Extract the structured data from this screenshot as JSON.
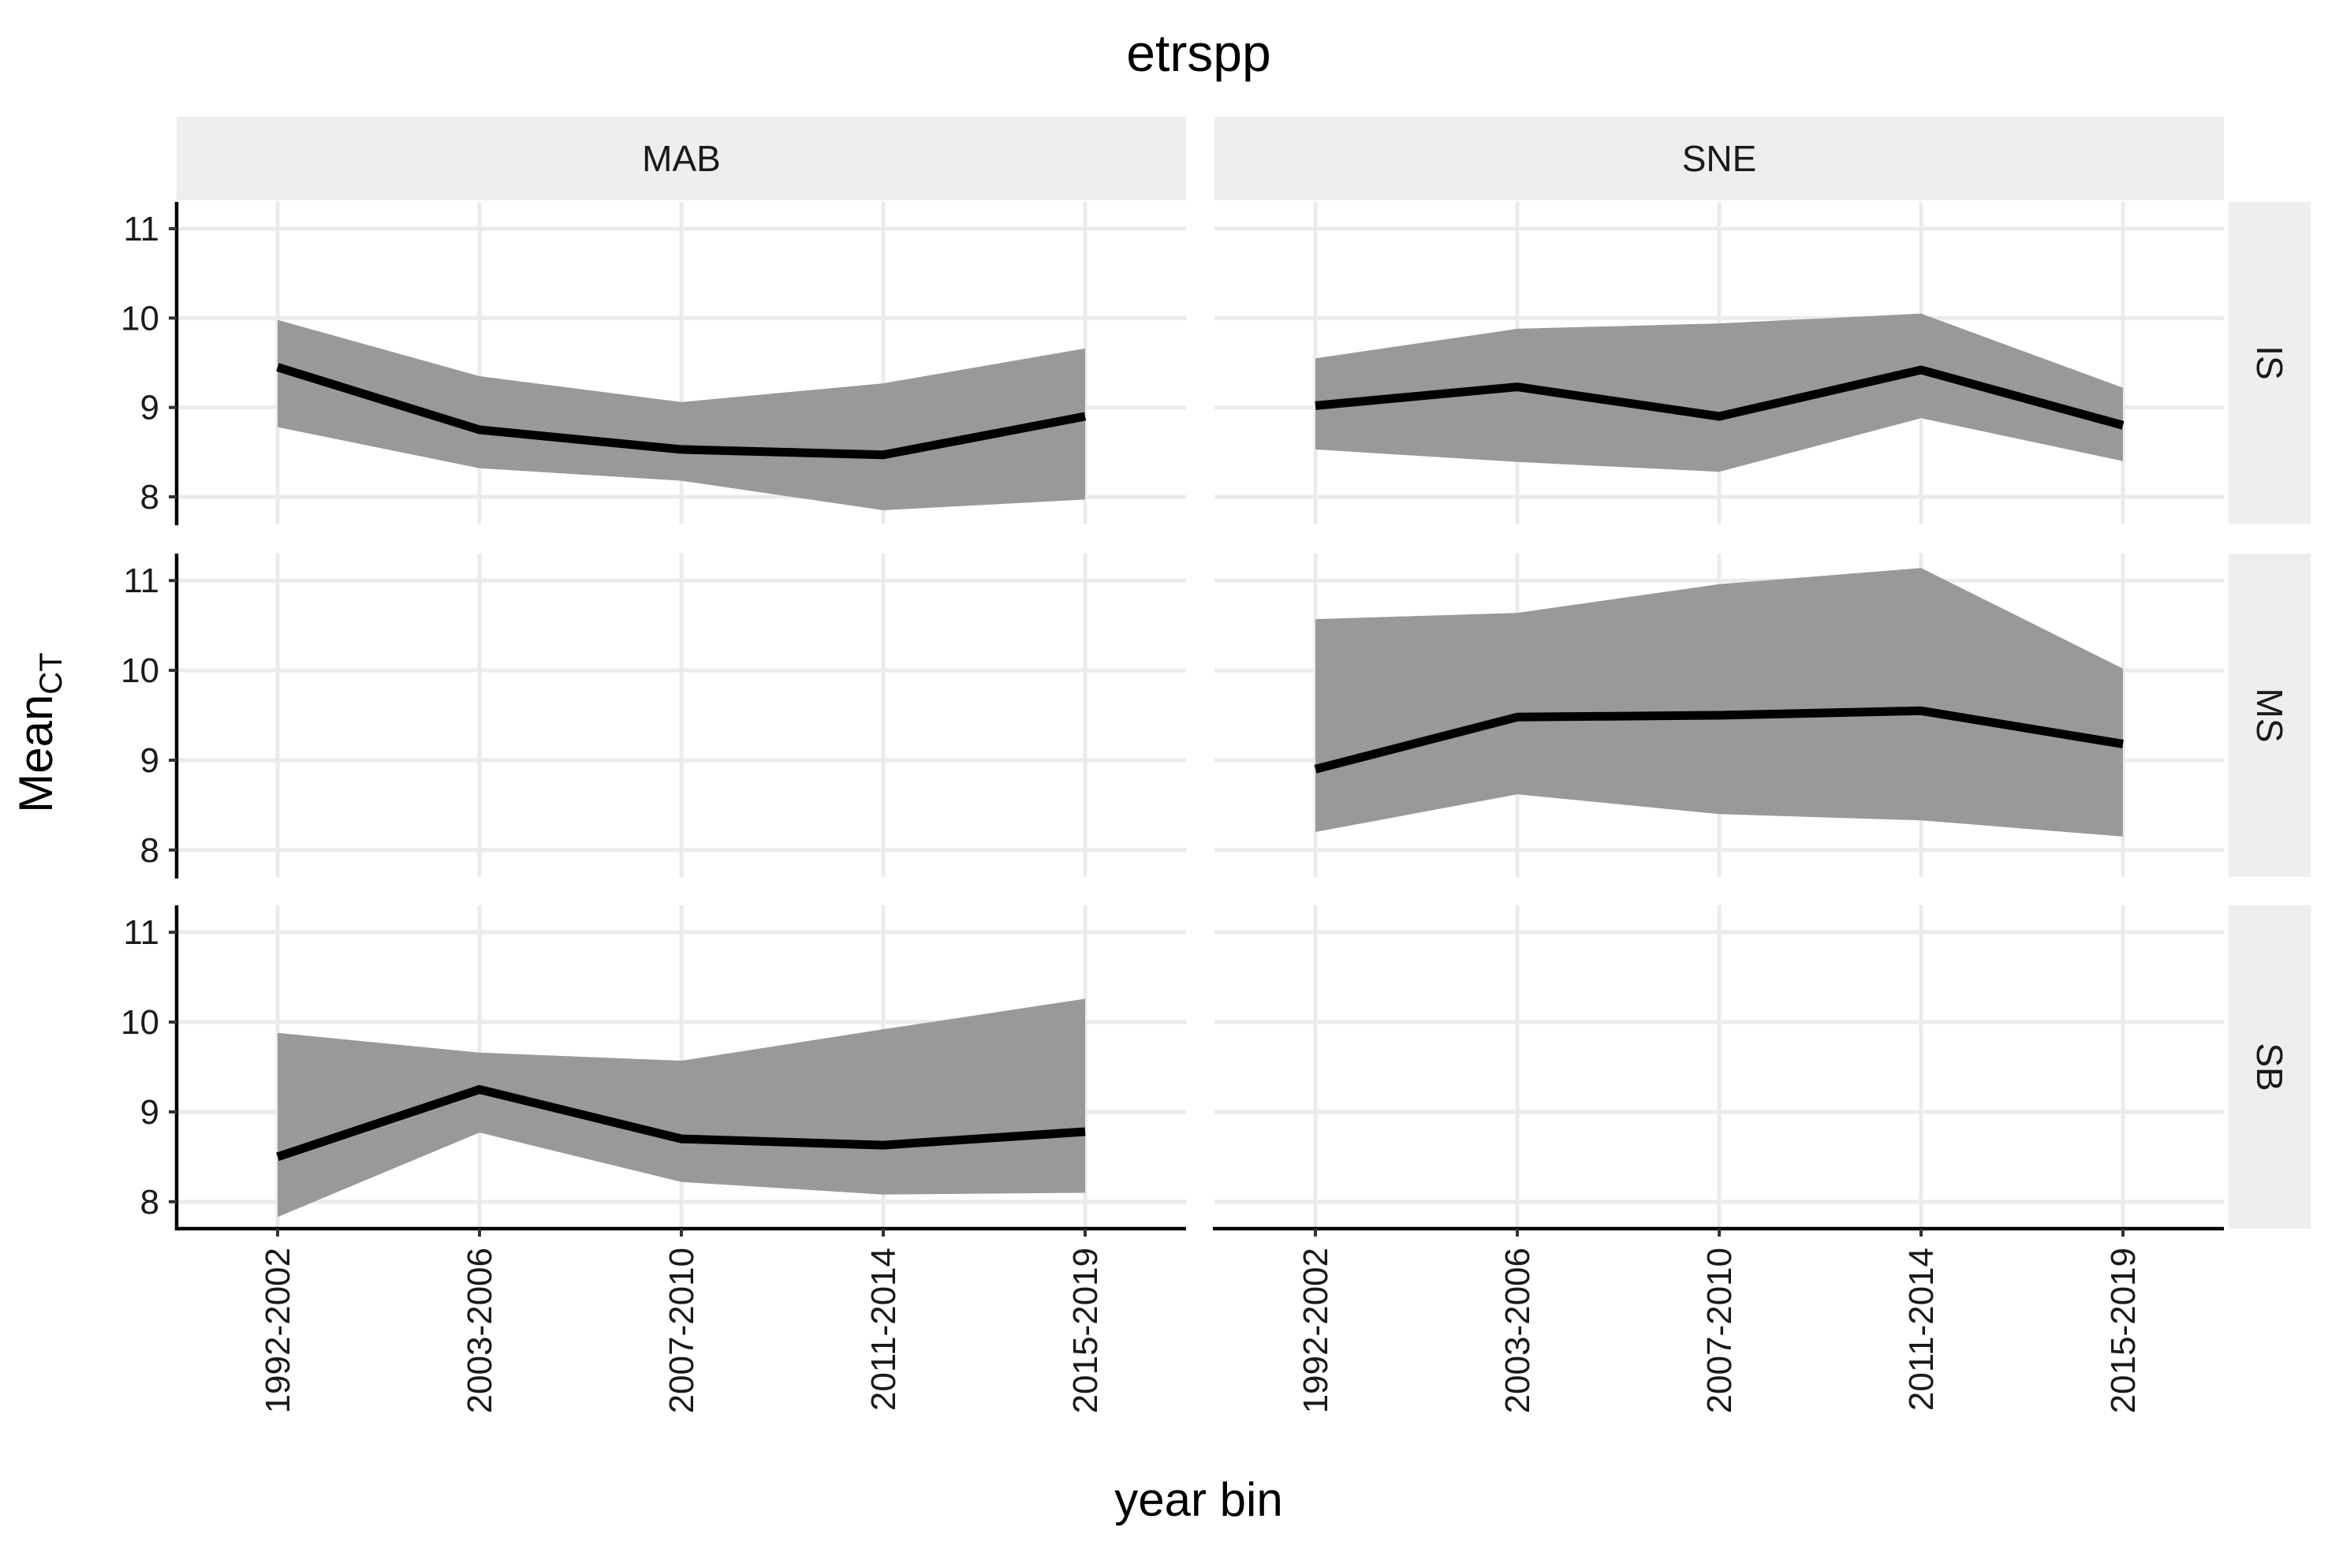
{
  "chart_data": {
    "type": "line",
    "title": "etrspp",
    "xlabel": "year bin",
    "ylabel": "Mean",
    "ylabel_subscript": "CT",
    "categories": [
      "1992-2002",
      "2003-2006",
      "2007-2010",
      "2011-2014",
      "2015-2019"
    ],
    "yticks": [
      8,
      9,
      10,
      11
    ],
    "ylim": [
      7.7,
      11.3
    ],
    "grid": true,
    "columns": [
      "MAB",
      "SNE"
    ],
    "rows": [
      "IS",
      "MS",
      "SB"
    ],
    "panels": [
      {
        "column": "MAB",
        "row": "IS",
        "mean": [
          9.45,
          8.75,
          8.53,
          8.47,
          8.9
        ],
        "lower": [
          8.78,
          8.32,
          8.18,
          7.85,
          7.97
        ],
        "upper": [
          9.98,
          9.35,
          9.06,
          9.27,
          9.66
        ]
      },
      {
        "column": "SNE",
        "row": "IS",
        "mean": [
          9.02,
          9.23,
          8.9,
          9.42,
          8.8
        ],
        "lower": [
          8.53,
          8.39,
          8.28,
          8.88,
          8.4
        ],
        "upper": [
          9.55,
          9.88,
          9.94,
          10.05,
          9.22
        ]
      },
      {
        "column": "MAB",
        "row": "MS",
        "mean": [],
        "lower": [],
        "upper": []
      },
      {
        "column": "SNE",
        "row": "MS",
        "mean": [
          8.9,
          9.48,
          9.5,
          9.55,
          9.18
        ],
        "lower": [
          8.2,
          8.62,
          8.4,
          8.33,
          8.15
        ],
        "upper": [
          10.57,
          10.64,
          10.96,
          11.14,
          10.02
        ]
      },
      {
        "column": "MAB",
        "row": "SB",
        "mean": [
          8.5,
          9.25,
          8.7,
          8.63,
          8.78
        ],
        "lower": [
          7.83,
          8.77,
          8.22,
          8.08,
          8.1
        ],
        "upper": [
          9.88,
          9.66,
          9.57,
          9.92,
          10.26
        ]
      },
      {
        "column": "SNE",
        "row": "SB",
        "mean": [],
        "lower": [],
        "upper": []
      }
    ],
    "colors": {
      "ribbon": "#999999",
      "line": "#000000",
      "strip": "#eeeeee",
      "grid": "#ebebeb"
    }
  }
}
